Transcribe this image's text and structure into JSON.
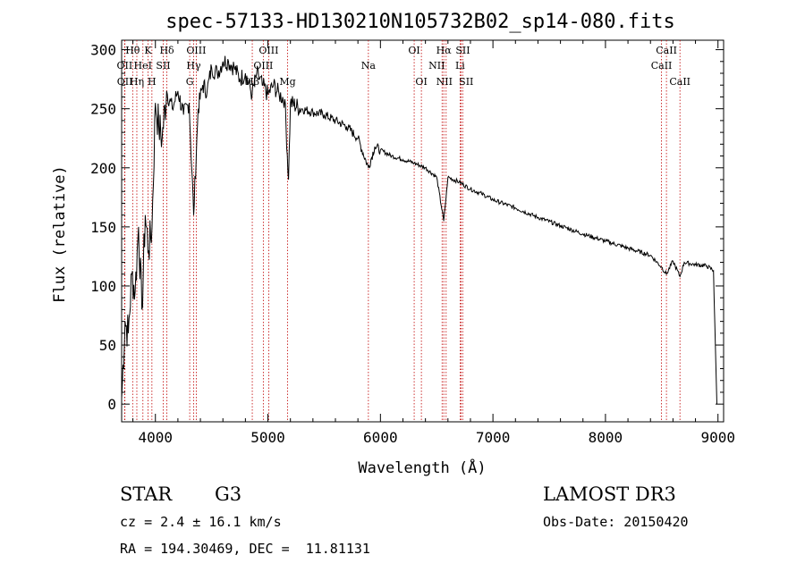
{
  "chart_data": {
    "type": "line",
    "title": "spec-57133-HD130210N105732B02_sp14-080.fits",
    "xlabel": "Wavelength (Å)",
    "ylabel": "Flux (relative)",
    "xlim": [
      3700,
      9050
    ],
    "ylim": [
      -15,
      308
    ],
    "xticks": [
      4000,
      5000,
      6000,
      7000,
      8000,
      9000
    ],
    "yticks": [
      0,
      50,
      100,
      150,
      200,
      250,
      300
    ],
    "grid": false,
    "series": [
      {
        "x": [
          3700,
          3730,
          3760,
          3790,
          3820,
          3850,
          3880,
          3910,
          3940,
          3970,
          4000,
          4030,
          4060,
          4100,
          4150,
          4200,
          4250,
          4300,
          4340,
          4380,
          4420,
          4460,
          4500,
          4550,
          4600,
          4650,
          4700,
          4750,
          4800,
          4860,
          4900,
          4950,
          5000,
          5050,
          5100,
          5150,
          5183,
          5200,
          5300,
          5400,
          5500,
          5600,
          5700,
          5800,
          5893,
          5950,
          6000,
          6100,
          6200,
          6300,
          6400,
          6500,
          6563,
          6600,
          6700,
          6800,
          6900,
          7000,
          7200,
          7400,
          7600,
          7800,
          8000,
          8200,
          8400,
          8498,
          8542,
          8600,
          8662,
          8700,
          8800,
          8900,
          8960,
          8990
        ],
        "y": [
          5,
          70,
          60,
          110,
          95,
          150,
          80,
          160,
          130,
          150,
          255,
          235,
          225,
          265,
          250,
          265,
          245,
          255,
          160,
          250,
          270,
          265,
          285,
          280,
          290,
          290,
          285,
          275,
          280,
          262,
          280,
          270,
          262,
          270,
          262,
          258,
          190,
          255,
          250,
          247,
          245,
          240,
          235,
          225,
          200,
          218,
          215,
          210,
          207,
          204,
          200,
          192,
          155,
          192,
          188,
          182,
          178,
          173,
          166,
          158,
          151,
          144,
          138,
          132,
          126,
          116,
          110,
          121,
          108,
          120,
          118,
          117,
          113,
          0
        ]
      }
    ],
    "lines": [
      {
        "label": "Hθ",
        "x": 3798,
        "row": 0
      },
      {
        "label": "OII",
        "x": 3727,
        "row": 1
      },
      {
        "label": "OII",
        "x": 3729,
        "row": 2
      },
      {
        "label": "Hη",
        "x": 3835,
        "row": 2
      },
      {
        "label": "K",
        "x": 3934,
        "row": 0
      },
      {
        "label": "HeI",
        "x": 3889,
        "row": 1
      },
      {
        "label": "H",
        "x": 3969,
        "row": 2
      },
      {
        "label": "Hδ",
        "x": 4102,
        "row": 0
      },
      {
        "label": "SII",
        "x": 4070,
        "row": 1
      },
      {
        "label": "OIII",
        "x": 4363,
        "row": 0
      },
      {
        "label": "Hγ",
        "x": 4340,
        "row": 1
      },
      {
        "label": "G",
        "x": 4305,
        "row": 2
      },
      {
        "label": "OIII",
        "x": 5007,
        "row": 0
      },
      {
        "label": "OIII",
        "x": 4959,
        "row": 1
      },
      {
        "label": "Hβ",
        "x": 4861,
        "row": 2
      },
      {
        "label": "Mg",
        "x": 5175,
        "row": 2
      },
      {
        "label": "Na",
        "x": 5893,
        "row": 1
      },
      {
        "label": "OI",
        "x": 6300,
        "row": 0
      },
      {
        "label": "OI",
        "x": 6364,
        "row": 2
      },
      {
        "label": "Hα",
        "x": 6563,
        "row": 0
      },
      {
        "label": "SII",
        "x": 6717,
        "row": 0
      },
      {
        "label": "NII",
        "x": 6548,
        "row": 1
      },
      {
        "label": "Li",
        "x": 6708,
        "row": 1
      },
      {
        "label": "NII",
        "x": 6584,
        "row": 2
      },
      {
        "label": "SII",
        "x": 6731,
        "row": 2
      },
      {
        "label": "CaII",
        "x": 8542,
        "row": 0
      },
      {
        "label": "CaII",
        "x": 8498,
        "row": 1
      },
      {
        "label": "CaII",
        "x": 8662,
        "row": 2
      }
    ]
  },
  "footer": {
    "object_class": "STAR",
    "subclass": "G3",
    "survey": "LAMOST DR3",
    "cz": "cz = 2.4 ± 16.1 km/s",
    "obs_date": "Obs-Date: 20150420",
    "coords": "RA = 194.30469, DEC =  11.81131"
  }
}
